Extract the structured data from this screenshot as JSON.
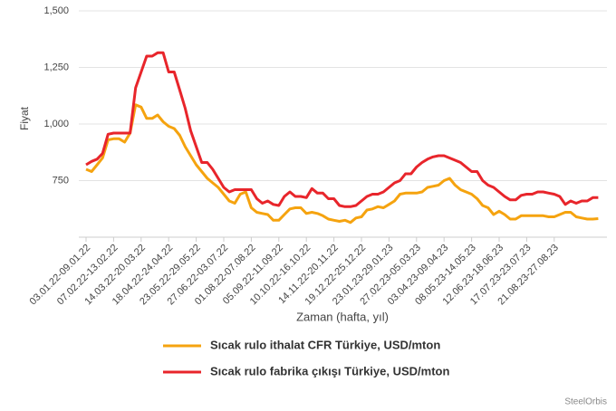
{
  "chart_data": {
    "type": "line",
    "y_label": "Fiyat",
    "x_label": "Zaman (hafta, yıl)",
    "credit": "SteelOrbis",
    "grid": true,
    "legend_position": "bottom",
    "ylim": [
      500,
      1500
    ],
    "yticks": [
      750,
      {
        "value": 1000,
        "label": "1,000"
      },
      {
        "value": 1250,
        "label": "1,250"
      },
      {
        "value": 1500,
        "label": "1,500"
      }
    ],
    "categories": [
      "03.01.22-09.01.22",
      null,
      null,
      null,
      null,
      "07.02.22-13.02.22",
      null,
      null,
      null,
      null,
      "14.03.22-20.03.22",
      null,
      null,
      null,
      null,
      "18.04.22-24.04.22",
      null,
      null,
      null,
      null,
      "23.05.22-29.05.22",
      null,
      null,
      null,
      null,
      "27.06.22-03.07.22",
      null,
      null,
      null,
      null,
      "01.08.22-07.08.22",
      null,
      null,
      null,
      null,
      "05.09.22-11.09.22",
      null,
      null,
      null,
      null,
      "10.10.22-16.10.22",
      null,
      null,
      null,
      null,
      "14.11.22-20.11.22",
      null,
      null,
      null,
      null,
      "19.12.22-25.12.22",
      null,
      null,
      null,
      null,
      "23.01.23-29.01.23",
      null,
      null,
      null,
      null,
      "27.02.23-05.03.23",
      null,
      null,
      null,
      null,
      "03.04.23-09.04.23",
      null,
      null,
      null,
      null,
      "08.05.23-14.05.23",
      null,
      null,
      null,
      null,
      "12.06.23-18.06.23",
      null,
      null,
      null,
      null,
      "17.07.23-23.07.23",
      null,
      null,
      null,
      null,
      "21.08.23-27.08.23",
      null,
      null,
      null,
      null,
      null,
      null,
      null,
      null
    ],
    "series": [
      {
        "name": "Sıcak rulo ithalat CFR Türkiye, USD/mton",
        "color": "#f5a30f",
        "values": [
          800,
          790,
          820,
          850,
          930,
          935,
          935,
          920,
          960,
          1085,
          1075,
          1025,
          1025,
          1040,
          1010,
          990,
          980,
          950,
          900,
          860,
          820,
          790,
          760,
          740,
          720,
          690,
          660,
          650,
          690,
          700,
          630,
          610,
          605,
          600,
          575,
          575,
          600,
          625,
          630,
          630,
          605,
          610,
          605,
          595,
          580,
          575,
          570,
          575,
          565,
          585,
          590,
          620,
          625,
          635,
          630,
          645,
          660,
          690,
          695,
          695,
          695,
          700,
          720,
          725,
          730,
          750,
          760,
          730,
          710,
          700,
          690,
          670,
          640,
          630,
          600,
          615,
          600,
          580,
          580,
          595,
          595,
          595,
          595,
          595,
          590,
          590,
          600,
          610,
          610,
          590,
          585,
          580,
          580,
          582
        ]
      },
      {
        "name": "Sıcak rulo fabrika çıkışı Türkiye, USD/mton",
        "color": "#e8252b",
        "values": [
          820,
          835,
          845,
          870,
          955,
          960,
          960,
          960,
          960,
          1160,
          1230,
          1300,
          1300,
          1315,
          1315,
          1230,
          1230,
          1150,
          1070,
          970,
          900,
          830,
          830,
          800,
          760,
          720,
          700,
          710,
          710,
          710,
          710,
          670,
          650,
          660,
          645,
          640,
          680,
          700,
          680,
          680,
          675,
          715,
          695,
          695,
          670,
          670,
          640,
          635,
          635,
          640,
          660,
          680,
          690,
          690,
          700,
          720,
          740,
          750,
          780,
          780,
          810,
          830,
          845,
          855,
          860,
          860,
          850,
          840,
          830,
          810,
          790,
          790,
          750,
          730,
          720,
          700,
          680,
          665,
          665,
          685,
          690,
          690,
          700,
          700,
          695,
          690,
          680,
          645,
          660,
          650,
          660,
          660,
          675,
          675
        ]
      }
    ]
  }
}
